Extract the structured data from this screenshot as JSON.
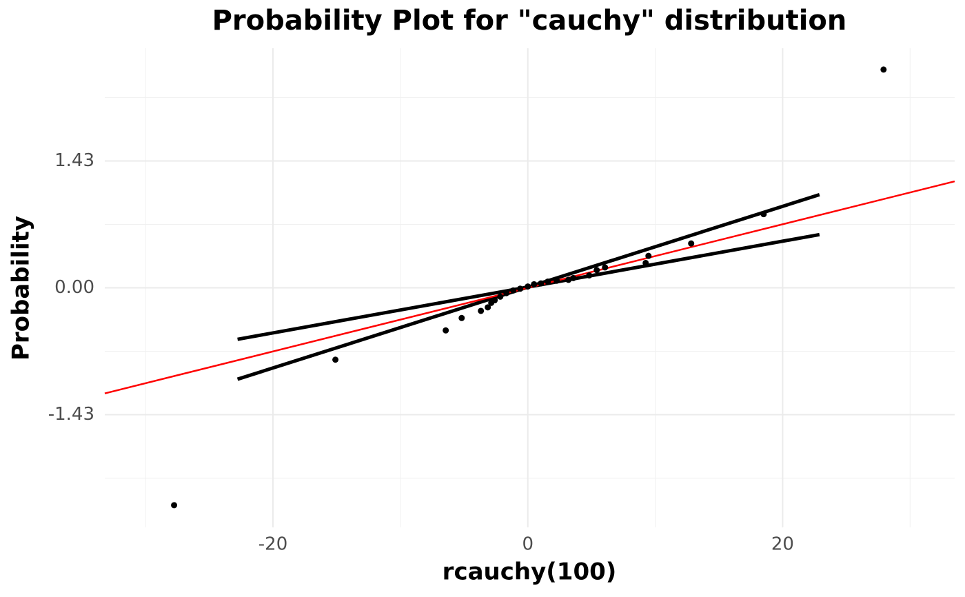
{
  "chart_data": {
    "type": "scatter",
    "title": "Probability Plot for \"cauchy\" distribution",
    "x_label": "rcauchy(100)",
    "y_label": "Probability",
    "x": [
      -27.76,
      -15.1,
      -6.44,
      -5.19,
      -3.68,
      -3.14,
      -2.87,
      -2.6,
      -2.16,
      -1.68,
      -1.14,
      -0.6,
      0,
      0.49,
      1.03,
      1.57,
      2.27,
      3.19,
      3.57,
      4.82,
      5.41,
      6.06,
      9.25,
      9.47,
      12.82,
      18.51,
      27.92
    ],
    "y": [
      -2.45,
      -0.81,
      -0.48,
      -0.34,
      -0.26,
      -0.22,
      -0.17,
      -0.14,
      -0.1,
      -0.06,
      -0.03,
      -0.01,
      0.015,
      0.04,
      0.05,
      0.07,
      0.08,
      0.09,
      0.11,
      0.14,
      0.2,
      0.23,
      0.28,
      0.36,
      0.5,
      0.83,
      2.46
    ],
    "color": "#000000",
    "reference_line": {
      "x": [
        -33.2,
        33.5
      ],
      "y": [
        -1.19,
        1.2
      ],
      "color": "#ff0000"
    },
    "band_lines": [
      {
        "x": [
          -22.78,
          22.89
        ],
        "y": [
          -1.03,
          1.05
        ],
        "color": "#000000"
      },
      {
        "x": [
          -22.78,
          22.89
        ],
        "y": [
          -0.58,
          0.6
        ],
        "color": "#000000"
      }
    ],
    "xlim": [
      -33.2,
      33.5
    ],
    "ylim": [
      -2.7,
      2.7
    ],
    "xticks": [
      -20,
      {
        "value": 0,
        "label": "0"
      },
      20
    ],
    "yticks": [
      -1.43,
      {
        "value": 0,
        "label": "0.00"
      },
      1.43
    ],
    "xminor": [
      -30,
      -10,
      10,
      30
    ],
    "yminor": [
      -2.145,
      -0.715,
      0.715,
      2.145
    ],
    "grid": true
  }
}
